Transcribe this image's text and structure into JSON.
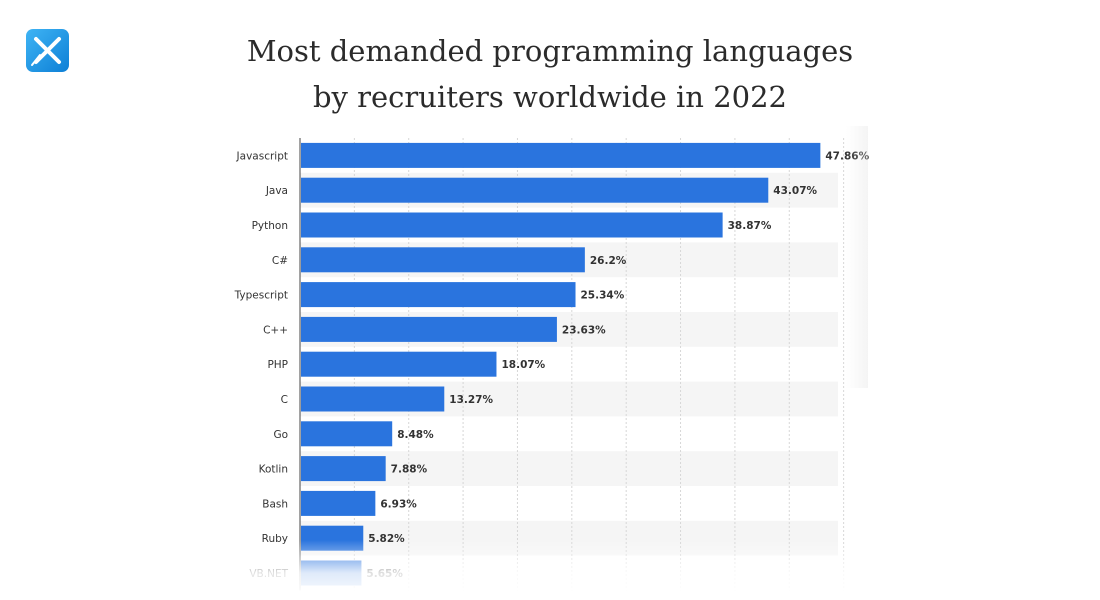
{
  "title_line1": "Most demanded programming languages",
  "title_line2": "by recruiters worldwide in 2022",
  "colors": {
    "bar": "#2a74de",
    "grid": "#d6d6d6",
    "stripe": "#f5f5f5",
    "label": "#333333",
    "title": "#2b2b2b",
    "logo_dark": "#0d7fd6",
    "logo_light": "#3fb4f4"
  },
  "logo": {
    "icon": "x-logo-icon"
  },
  "chart_data": {
    "type": "bar",
    "orientation": "horizontal",
    "categories": [
      "Javascript",
      "Java",
      "Python",
      "C#",
      "Typescript",
      "C++",
      "PHP",
      "C",
      "Go",
      "Kotlin",
      "Bash",
      "Ruby",
      "VB.NET"
    ],
    "values": [
      47.86,
      43.07,
      38.87,
      26.2,
      25.34,
      23.63,
      18.07,
      13.27,
      8.48,
      7.88,
      6.93,
      5.82,
      5.65
    ],
    "value_labels": [
      "47.86%",
      "43.07%",
      "38.87%",
      "26.2%",
      "25.34%",
      "23.63%",
      "18.07%",
      "13.27%",
      "8.48%",
      "7.88%",
      "6.93%",
      "5.82%",
      "5.65%"
    ],
    "xlim": [
      0,
      55
    ],
    "x_gridlines": [
      5,
      10,
      15,
      20,
      25,
      30,
      35,
      40,
      45,
      50,
      55
    ],
    "grid": true,
    "legend": false
  }
}
